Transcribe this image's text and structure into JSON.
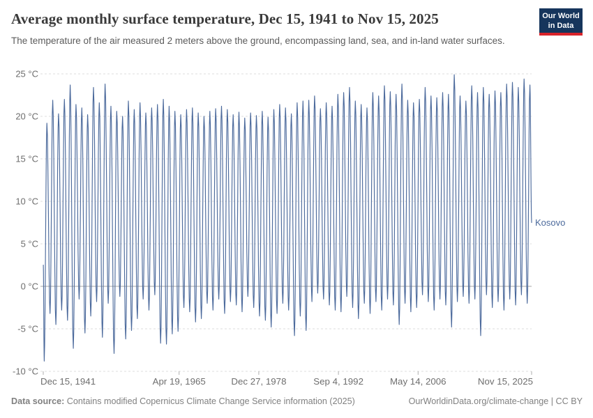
{
  "header": {
    "title": "Average monthly surface temperature, Dec 15, 1941 to Nov 15, 2025",
    "subtitle": "The temperature of the air measured 2 meters above the ground, encompassing land, sea, and in-land water surfaces.",
    "logo": {
      "line1": "Our World",
      "line2": "in Data",
      "bg_color": "#16355c",
      "accent_color": "#d8232a"
    }
  },
  "footer": {
    "source_label": "Data source:",
    "source_text": " Contains modified Copernicus Climate Change Service information (2025)",
    "link_text": "OurWorldinData.org/climate-change | CC BY"
  },
  "chart_data": {
    "type": "line",
    "title": "Average monthly surface temperature",
    "xlabel": "",
    "ylabel": "°C",
    "grid": "dashed-horizontal",
    "legend_position": "right-of-line-end",
    "ylim": [
      -10,
      25
    ],
    "xlim": [
      1941.953,
      2025.871
    ],
    "colors": {
      "line": "#4c6a9c",
      "grid": "#dcdcdc",
      "zero_line": "#a5a5a5",
      "axis_text": "#6e6e6e"
    },
    "y_ticks": [
      {
        "value": -10,
        "label": "-10 °C"
      },
      {
        "value": -5,
        "label": "-5 °C"
      },
      {
        "value": 0,
        "label": "0 °C"
      },
      {
        "value": 5,
        "label": "5 °C"
      },
      {
        "value": 10,
        "label": "10 °C"
      },
      {
        "value": 15,
        "label": "15 °C"
      },
      {
        "value": 20,
        "label": "20 °C"
      },
      {
        "value": 25,
        "label": "25 °C"
      }
    ],
    "x_ticks": [
      {
        "value": 1941.953,
        "label": "Dec 15, 1941"
      },
      {
        "value": 1965.296,
        "label": "Apr 19, 1965"
      },
      {
        "value": 1978.989,
        "label": "Dec 27, 1978"
      },
      {
        "value": 1992.677,
        "label": "Sep 4, 1992"
      },
      {
        "value": 2006.364,
        "label": "May 14, 2006"
      },
      {
        "value": 2025.871,
        "label": "Nov 15, 2025"
      }
    ],
    "series": [
      {
        "name": "Kosovo",
        "color": "#4c6a9c",
        "points": [
          [
            1941.96,
            2.5
          ],
          [
            1942.12,
            -8.8
          ],
          [
            1942.58,
            19.2
          ],
          [
            1943.12,
            -3.2
          ],
          [
            1943.58,
            21.9
          ],
          [
            1944.12,
            -4.5
          ],
          [
            1944.58,
            20.3
          ],
          [
            1945.12,
            -2.8
          ],
          [
            1945.58,
            22.0
          ],
          [
            1946.12,
            -4.0
          ],
          [
            1946.58,
            23.7
          ],
          [
            1947.12,
            -7.3
          ],
          [
            1947.58,
            21.4
          ],
          [
            1948.12,
            -1.5
          ],
          [
            1948.58,
            21.0
          ],
          [
            1949.12,
            -5.5
          ],
          [
            1949.58,
            20.2
          ],
          [
            1950.12,
            -3.5
          ],
          [
            1950.58,
            23.4
          ],
          [
            1951.12,
            -1.8
          ],
          [
            1951.58,
            21.6
          ],
          [
            1952.12,
            -6.0
          ],
          [
            1952.58,
            23.8
          ],
          [
            1953.12,
            -2.0
          ],
          [
            1953.58,
            21.2
          ],
          [
            1954.12,
            -7.9
          ],
          [
            1954.58,
            20.6
          ],
          [
            1955.12,
            -1.2
          ],
          [
            1955.58,
            20.0
          ],
          [
            1956.12,
            -6.2
          ],
          [
            1956.58,
            21.8
          ],
          [
            1957.12,
            -5.2
          ],
          [
            1957.58,
            20.8
          ],
          [
            1958.12,
            -3.8
          ],
          [
            1958.58,
            21.6
          ],
          [
            1959.12,
            -1.5
          ],
          [
            1959.58,
            20.4
          ],
          [
            1960.12,
            -2.8
          ],
          [
            1960.58,
            21.0
          ],
          [
            1961.12,
            -1.0
          ],
          [
            1961.58,
            21.4
          ],
          [
            1962.12,
            -6.7
          ],
          [
            1962.58,
            22.0
          ],
          [
            1963.12,
            -6.8
          ],
          [
            1963.58,
            21.2
          ],
          [
            1964.12,
            -5.6
          ],
          [
            1964.58,
            20.6
          ],
          [
            1965.12,
            -5.3
          ],
          [
            1965.58,
            20.2
          ],
          [
            1966.12,
            -2.5
          ],
          [
            1966.58,
            20.8
          ],
          [
            1967.12,
            -3.0
          ],
          [
            1967.58,
            21.0
          ],
          [
            1968.12,
            -4.2
          ],
          [
            1968.58,
            20.4
          ],
          [
            1969.12,
            -3.8
          ],
          [
            1969.58,
            20.0
          ],
          [
            1970.12,
            -2.0
          ],
          [
            1970.58,
            20.6
          ],
          [
            1971.12,
            -2.8
          ],
          [
            1971.58,
            20.9
          ],
          [
            1972.12,
            -1.5
          ],
          [
            1972.58,
            21.2
          ],
          [
            1973.12,
            -3.2
          ],
          [
            1973.58,
            20.8
          ],
          [
            1974.12,
            -1.8
          ],
          [
            1974.58,
            20.2
          ],
          [
            1975.12,
            -2.2
          ],
          [
            1975.58,
            20.5
          ],
          [
            1976.12,
            -3.0
          ],
          [
            1976.58,
            19.8
          ],
          [
            1977.12,
            -1.2
          ],
          [
            1977.58,
            20.4
          ],
          [
            1978.12,
            -2.5
          ],
          [
            1978.58,
            20.1
          ],
          [
            1979.12,
            -3.5
          ],
          [
            1979.58,
            20.6
          ],
          [
            1980.12,
            -4.0
          ],
          [
            1980.58,
            19.9
          ],
          [
            1981.12,
            -4.8
          ],
          [
            1981.58,
            20.8
          ],
          [
            1982.12,
            -3.2
          ],
          [
            1982.58,
            21.4
          ],
          [
            1983.12,
            -2.0
          ],
          [
            1983.58,
            21.0
          ],
          [
            1984.12,
            -2.8
          ],
          [
            1984.58,
            20.3
          ],
          [
            1985.12,
            -5.8
          ],
          [
            1985.58,
            21.6
          ],
          [
            1986.12,
            -3.5
          ],
          [
            1986.58,
            21.8
          ],
          [
            1987.12,
            -5.2
          ],
          [
            1987.58,
            21.9
          ],
          [
            1988.12,
            -1.8
          ],
          [
            1988.58,
            22.4
          ],
          [
            1989.12,
            -0.8
          ],
          [
            1989.58,
            20.9
          ],
          [
            1990.12,
            -1.5
          ],
          [
            1990.58,
            21.6
          ],
          [
            1991.12,
            -2.2
          ],
          [
            1991.58,
            21.2
          ],
          [
            1992.12,
            -2.8
          ],
          [
            1992.58,
            22.6
          ],
          [
            1993.12,
            -3.0
          ],
          [
            1993.58,
            22.8
          ],
          [
            1994.12,
            -1.2
          ],
          [
            1994.58,
            23.4
          ],
          [
            1995.12,
            -2.5
          ],
          [
            1995.58,
            21.8
          ],
          [
            1996.12,
            -3.8
          ],
          [
            1996.58,
            21.4
          ],
          [
            1997.12,
            -2.0
          ],
          [
            1997.58,
            21.0
          ],
          [
            1998.12,
            -3.2
          ],
          [
            1998.58,
            22.8
          ],
          [
            1999.12,
            -1.8
          ],
          [
            1999.58,
            22.4
          ],
          [
            2000.12,
            -2.8
          ],
          [
            2000.58,
            23.6
          ],
          [
            2001.12,
            -1.5
          ],
          [
            2001.58,
            22.9
          ],
          [
            2002.12,
            -2.2
          ],
          [
            2002.58,
            22.6
          ],
          [
            2003.12,
            -4.5
          ],
          [
            2003.58,
            23.8
          ],
          [
            2004.12,
            -2.0
          ],
          [
            2004.58,
            21.9
          ],
          [
            2005.12,
            -3.0
          ],
          [
            2005.58,
            21.6
          ],
          [
            2006.12,
            -2.5
          ],
          [
            2006.58,
            22.0
          ],
          [
            2007.12,
            -1.0
          ],
          [
            2007.58,
            23.4
          ],
          [
            2008.12,
            -1.8
          ],
          [
            2008.58,
            22.4
          ],
          [
            2009.12,
            -2.8
          ],
          [
            2009.58,
            22.2
          ],
          [
            2010.12,
            -1.5
          ],
          [
            2010.58,
            22.8
          ],
          [
            2011.12,
            -2.2
          ],
          [
            2011.58,
            22.6
          ],
          [
            2012.12,
            -4.8
          ],
          [
            2012.58,
            24.9
          ],
          [
            2013.12,
            -1.8
          ],
          [
            2013.58,
            22.4
          ],
          [
            2014.12,
            -1.2
          ],
          [
            2014.58,
            21.8
          ],
          [
            2015.12,
            -2.0
          ],
          [
            2015.58,
            23.6
          ],
          [
            2016.12,
            -1.5
          ],
          [
            2016.58,
            22.8
          ],
          [
            2017.12,
            -5.8
          ],
          [
            2017.58,
            23.4
          ],
          [
            2018.12,
            -1.0
          ],
          [
            2018.58,
            22.6
          ],
          [
            2019.12,
            -2.5
          ],
          [
            2019.58,
            23.0
          ],
          [
            2020.12,
            -1.8
          ],
          [
            2020.58,
            22.8
          ],
          [
            2021.12,
            -2.8
          ],
          [
            2021.58,
            23.8
          ],
          [
            2022.12,
            -1.5
          ],
          [
            2022.58,
            24.0
          ],
          [
            2023.12,
            -2.2
          ],
          [
            2023.58,
            23.4
          ],
          [
            2024.12,
            -1.0
          ],
          [
            2024.58,
            24.4
          ],
          [
            2025.12,
            -2.0
          ],
          [
            2025.58,
            23.7
          ],
          [
            2025.87,
            7.5
          ]
        ]
      }
    ]
  }
}
